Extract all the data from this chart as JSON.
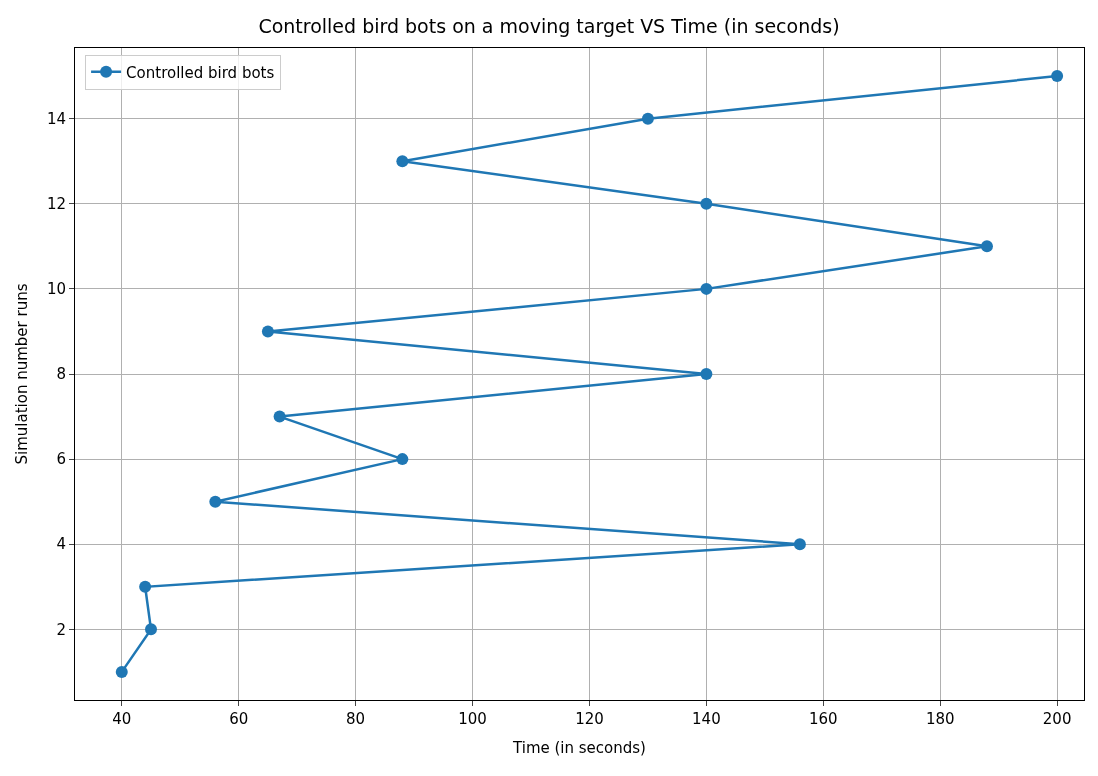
{
  "chart_data": {
    "type": "line",
    "title": "Controlled bird bots on a moving target VS Time (in seconds)",
    "xlabel": "Time (in seconds)",
    "ylabel": "Simulation number runs",
    "series": [
      {
        "name": "Controlled bird bots",
        "color": "#1f77b4",
        "x": [
          40,
          45,
          44,
          156,
          56,
          88,
          67,
          140,
          65,
          140,
          188,
          140,
          88,
          130,
          200
        ],
        "values": [
          1,
          2,
          3,
          4,
          5,
          6,
          7,
          8,
          9,
          10,
          11,
          12,
          13,
          14,
          15
        ]
      }
    ],
    "xlim": [
      32,
      204.6
    ],
    "ylim": [
      0.34,
      15.66
    ],
    "xticks": [
      40,
      60,
      80,
      100,
      120,
      140,
      160,
      180,
      200
    ],
    "yticks": [
      2,
      4,
      6,
      8,
      10,
      12,
      14
    ],
    "grid": true,
    "legend": "top left",
    "marker": "circle",
    "line_style": "solid"
  }
}
